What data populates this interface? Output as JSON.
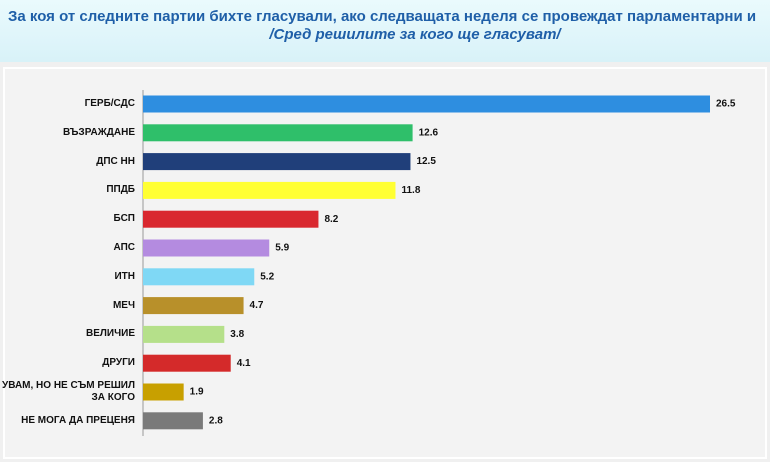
{
  "chart_data": {
    "type": "bar",
    "title": "За коя от следните партии бихте  гласували,  ако следващата неделя се провеждат парламентарни и",
    "subtitle": "/Сред решилите за кого ще гласуват/",
    "categories": [
      "ГЕРБ/СДС",
      "ВЪЗРАЖДАНЕ",
      "ДПС НН",
      "ППДБ",
      "БСП",
      "АПС",
      "ИТН",
      "МЕЧ",
      "ВЕЛИЧИЕ",
      "ДРУГИ",
      "УВАМ, НО НЕ СЪМ РЕШИЛ ЗА КОГО",
      "НЕ МОГА ДА ПРЕЦЕНЯ"
    ],
    "values": [
      26.5,
      12.6,
      12.5,
      11.8,
      8.2,
      5.9,
      5.2,
      4.7,
      3.8,
      4.1,
      1.9,
      2.8
    ],
    "colors": [
      "#2e8ee0",
      "#2fbf6a",
      "#203f7a",
      "#ffff33",
      "#d9282f",
      "#b48be0",
      "#7fd8f5",
      "#b8902a",
      "#b5e08a",
      "#d42a2a",
      "#c8a000",
      "#7a7a7a"
    ]
  }
}
